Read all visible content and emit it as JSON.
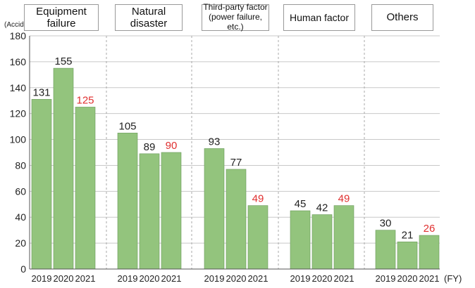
{
  "chart_data": {
    "type": "bar",
    "ylabel": "(Accidents)",
    "xlabel": "(FY)",
    "ylim": [
      0,
      180
    ],
    "yticks": [
      0,
      20,
      40,
      60,
      80,
      100,
      120,
      140,
      160,
      180
    ],
    "grid": true,
    "bar_color": "#93c47d",
    "highlight_label_color": "#e03030",
    "x": [
      "2019",
      "2020",
      "2021"
    ],
    "groups": [
      {
        "name": "Equipment\nfailure",
        "values": [
          131,
          155,
          125
        ]
      },
      {
        "name": "Natural\ndisaster",
        "values": [
          105,
          89,
          90
        ]
      },
      {
        "name": "Third-party factor\n(power failure, etc.)",
        "values": [
          93,
          77,
          49
        ]
      },
      {
        "name": "Human factor",
        "values": [
          45,
          42,
          49
        ]
      },
      {
        "name": "Others",
        "values": [
          30,
          21,
          26
        ]
      }
    ]
  }
}
